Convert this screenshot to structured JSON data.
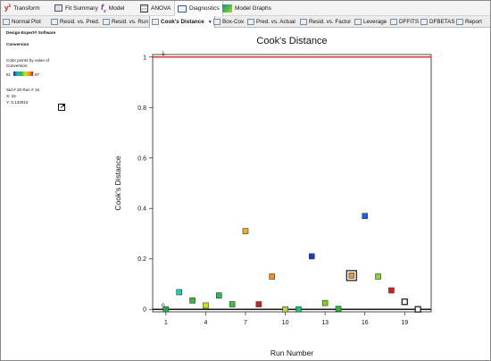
{
  "ribbon": {
    "items": [
      {
        "label": "Transform",
        "icon": "y-lambda-icon",
        "active": false
      },
      {
        "label": "Fit Summary",
        "icon": "fit-summary-icon",
        "active": false
      },
      {
        "label": "Model",
        "icon": "fx-icon",
        "active": false
      },
      {
        "label": "ANOVA",
        "icon": "anova-table-icon",
        "active": false
      },
      {
        "label": "Diagnostics",
        "icon": "diagnostics-chart-icon",
        "active": true
      },
      {
        "label": "Model Graphs",
        "icon": "model-graphs-icon",
        "active": false
      }
    ]
  },
  "subtabs": {
    "items": [
      {
        "label": "Normal Plot"
      },
      {
        "label": "Resid. vs. Pred."
      },
      {
        "label": "Resid. vs. Run"
      },
      {
        "label": "Cook's Distance",
        "active": true,
        "dropdown": "▼"
      },
      {
        "label": "Box-Cox"
      },
      {
        "label": "Pred. vs. Actual"
      },
      {
        "label": "Resid. vs. Factor"
      },
      {
        "label": "Leverage"
      },
      {
        "label": "DFFITS"
      },
      {
        "label": "DFBETAS"
      },
      {
        "label": "Report"
      }
    ]
  },
  "left_panel": {
    "software": "Design-Expert® Software",
    "response": "Conversion",
    "color_note_1": "Color points by value of",
    "color_note_2": "Conversion:",
    "scale_min": "51",
    "scale_max": "97",
    "selection_line": "Std # 20 Run # 15",
    "x_readout": "X: 15",
    "y_readout": "Y: 0.133915",
    "popout_icon": "pop-out-icon"
  },
  "chart_data": {
    "type": "scatter",
    "title": "Cook's Distance",
    "xlabel": "Run Number",
    "ylabel": "Cook's Distance",
    "xlim": [
      0,
      21
    ],
    "ylim": [
      -0.01,
      1.01
    ],
    "xticks": [
      "1",
      "4",
      "7",
      "10",
      "13",
      "16",
      "19"
    ],
    "xtick_values": [
      1,
      4,
      7,
      10,
      13,
      16,
      19
    ],
    "yticks": [
      "0",
      "0.2",
      "0.4",
      "0.6",
      "0.8",
      "1"
    ],
    "ytick_values": [
      0,
      0.2,
      0.4,
      0.6,
      0.8,
      1
    ],
    "limit_lines": [
      {
        "y": 1,
        "label": "1",
        "color": "#e02020"
      },
      {
        "y": 0,
        "label": "0",
        "color": "#000000"
      }
    ],
    "points": [
      {
        "x": 1,
        "y": 0.0,
        "color": "#20b040"
      },
      {
        "x": 2,
        "y": 0.068,
        "color": "#20d0b0"
      },
      {
        "x": 3,
        "y": 0.035,
        "color": "#30c030"
      },
      {
        "x": 4,
        "y": 0.015,
        "color": "#d0e020"
      },
      {
        "x": 5,
        "y": 0.055,
        "color": "#20c050"
      },
      {
        "x": 6,
        "y": 0.02,
        "color": "#40c040"
      },
      {
        "x": 7,
        "y": 0.31,
        "color": "#f0b020"
      },
      {
        "x": 8,
        "y": 0.02,
        "color": "#d02020"
      },
      {
        "x": 9,
        "y": 0.13,
        "color": "#f09020"
      },
      {
        "x": 10,
        "y": 0.0,
        "color": "#c0d040"
      },
      {
        "x": 11,
        "y": 0.0,
        "color": "#20c070"
      },
      {
        "x": 12,
        "y": 0.21,
        "color": "#1040d0"
      },
      {
        "x": 13,
        "y": 0.025,
        "color": "#80d020"
      },
      {
        "x": 14,
        "y": 0.002,
        "color": "#20c030"
      },
      {
        "x": 15,
        "y": 0.133915,
        "color": "#f09030",
        "selected": true
      },
      {
        "x": 16,
        "y": 0.37,
        "color": "#2060e0"
      },
      {
        "x": 17,
        "y": 0.13,
        "color": "#80e020"
      },
      {
        "x": 18,
        "y": 0.075,
        "color": "#d02020"
      },
      {
        "x": 19,
        "y": 0.03,
        "color": "#ffffff",
        "outlined": true
      },
      {
        "x": 20,
        "y": 0.0,
        "color": "#ffffff",
        "outlined": true
      }
    ],
    "grid": false,
    "legend": "none"
  }
}
